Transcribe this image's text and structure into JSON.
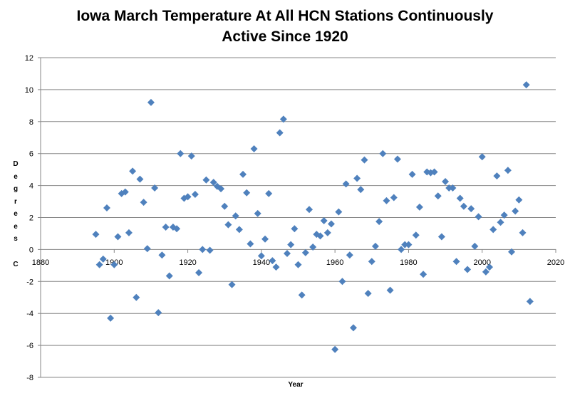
{
  "chart_data": {
    "type": "scatter",
    "title_line1": "Iowa March Temperature At All HCN Stations Continuously",
    "title_line2": "Active Since 1920",
    "xlabel": "Year",
    "ylabel": "Degrees C",
    "xlim": [
      1880,
      2020
    ],
    "ylim": [
      -8,
      12
    ],
    "xticks": [
      1880,
      1900,
      1920,
      1940,
      1960,
      1980,
      2000,
      2020
    ],
    "yticks": [
      -8,
      -6,
      -4,
      -2,
      0,
      2,
      4,
      6,
      8,
      10,
      12
    ],
    "grid": "horizontal",
    "marker_color": "#4F81BD",
    "gridline_color": "#878787",
    "x": [
      1895,
      1896,
      1897,
      1898,
      1899,
      1900,
      1901,
      1902,
      1903,
      1904,
      1905,
      1906,
      1907,
      1908,
      1909,
      1910,
      1911,
      1912,
      1913,
      1914,
      1915,
      1916,
      1917,
      1918,
      1919,
      1920,
      1921,
      1922,
      1923,
      1924,
      1925,
      1926,
      1927,
      1928,
      1929,
      1930,
      1931,
      1932,
      1933,
      1934,
      1935,
      1936,
      1937,
      1938,
      1939,
      1940,
      1941,
      1942,
      1943,
      1944,
      1945,
      1946,
      1947,
      1948,
      1949,
      1950,
      1951,
      1952,
      1953,
      1954,
      1955,
      1956,
      1957,
      1958,
      1959,
      1960,
      1961,
      1962,
      1963,
      1964,
      1965,
      1966,
      1967,
      1968,
      1969,
      1970,
      1971,
      1972,
      1973,
      1974,
      1975,
      1976,
      1977,
      1978,
      1979,
      1980,
      1981,
      1982,
      1983,
      1984,
      1985,
      1986,
      1987,
      1988,
      1989,
      1990,
      1991,
      1992,
      1993,
      1994,
      1995,
      1996,
      1997,
      1998,
      1999,
      2000,
      2001,
      2002,
      2003,
      2004,
      2005,
      2006,
      2007,
      2008,
      2009,
      2010,
      2011,
      2012,
      2013
    ],
    "y": [
      0.95,
      -0.95,
      -0.6,
      2.6,
      -4.3,
      -0.95,
      0.8,
      3.5,
      3.6,
      1.05,
      4.9,
      -3.0,
      4.4,
      2.95,
      0.05,
      9.2,
      3.85,
      -3.95,
      -0.35,
      1.4,
      -1.65,
      1.4,
      1.3,
      6.0,
      3.2,
      3.3,
      5.85,
      3.45,
      -1.45,
      0.0,
      4.35,
      -0.05,
      4.2,
      3.95,
      3.8,
      2.7,
      1.55,
      -2.2,
      2.1,
      1.25,
      4.7,
      3.55,
      0.35,
      6.3,
      2.25,
      -0.4,
      0.65,
      3.5,
      -0.7,
      -1.1,
      7.3,
      8.15,
      -0.25,
      0.3,
      1.3,
      -0.95,
      -2.85,
      -0.2,
      2.5,
      0.15,
      0.95,
      0.85,
      1.8,
      1.05,
      1.6,
      -6.25,
      2.35,
      -2.0,
      4.1,
      -0.35,
      -4.9,
      4.45,
      3.75,
      5.6,
      -2.75,
      -0.75,
      0.2,
      1.75,
      6.0,
      3.05,
      -2.55,
      3.25,
      5.65,
      0.0,
      0.3,
      0.3,
      4.7,
      0.9,
      2.65,
      -1.55,
      4.85,
      4.8,
      4.85,
      3.35,
      0.8,
      4.25,
      3.85,
      3.85,
      -0.75,
      3.2,
      2.7,
      -1.25,
      2.55,
      0.2,
      2.05,
      5.8,
      -1.4,
      -1.1,
      1.25,
      4.6,
      1.7,
      2.15,
      4.95,
      -0.15,
      2.4,
      3.1,
      1.05,
      10.3,
      -3.25
    ]
  }
}
